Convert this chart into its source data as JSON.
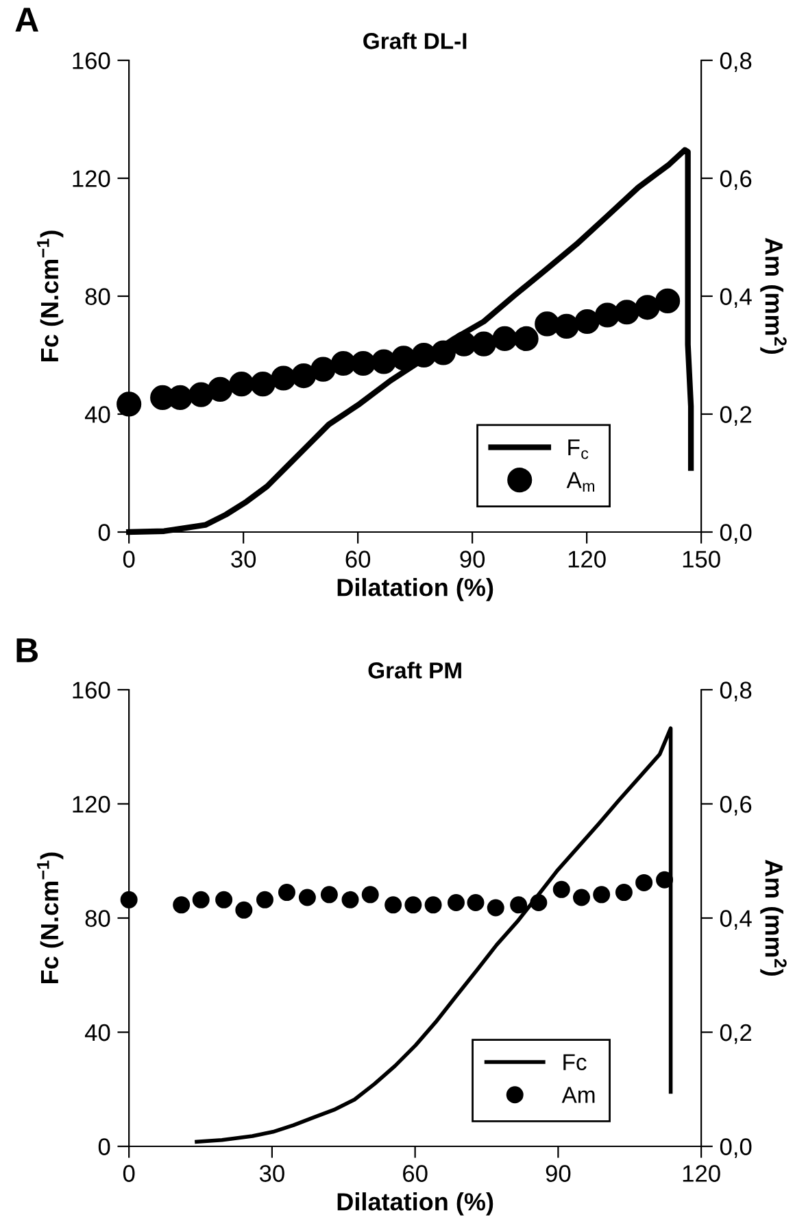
{
  "chart_data": [
    {
      "type": "line",
      "title": "Graft DL-I",
      "xlabel": "Dilatation (%)",
      "ylabel": "Fc (N.cm$^{−1}$)",
      "y2label": "Am (mm$^{2}$)",
      "annotations": [
        "A"
      ],
      "xlim": [
        0,
        150
      ],
      "xticks": [
        0,
        30,
        60,
        90,
        120,
        150
      ],
      "ylim": [
        0,
        160
      ],
      "yticks": [
        0,
        40,
        80,
        120,
        160
      ],
      "y2lim": [
        0,
        0.8
      ],
      "y2ticks": [
        {
          "value": 0,
          "label": "0,0"
        },
        {
          "value": 0.2,
          "label": "0,2"
        },
        {
          "value": 0.4,
          "label": "0,4"
        },
        {
          "value": 0.6,
          "label": "0,6"
        },
        {
          "value": 0.8,
          "label": "0,8"
        }
      ],
      "legend": "bottom right",
      "grid": false,
      "series": [
        {
          "name": "F$_{c}$",
          "color": "#000000",
          "line_style": "solid",
          "marker": "none",
          "x": [
            0,
            9.2,
            20,
            25.4,
            30.8,
            36.2,
            41.6,
            47,
            52.4,
            60.5,
            68.6,
            76.8,
            84.9,
            93,
            101,
            109.2,
            117.3,
            125.4,
            133.5,
            141.6,
            145.7,
            146.5,
            146.5,
            146.5,
            147.3,
            147.3
          ],
          "values": [
            0,
            0.3,
            2.4,
            5.9,
            10.3,
            15.5,
            22.5,
            29.5,
            36.5,
            43.5,
            51.4,
            58.3,
            65.3,
            71.4,
            80.2,
            88.9,
            97.6,
            107.2,
            116.9,
            124.7,
            129.6,
            129,
            98.5,
            63.6,
            42.6,
            21.7
          ]
        },
        {
          "name": "A$_{m}$",
          "type": "scatter",
          "axis": "y2",
          "color": "#000000",
          "marker": "circle",
          "x": [
            0,
            8.8,
            13.4,
            18.9,
            23.9,
            29.5,
            35.1,
            40.5,
            45.8,
            50.9,
            56.2,
            61.4,
            66.8,
            72.0,
            77.3,
            82.4,
            87.8,
            93.0,
            98.5,
            104.1,
            109.6,
            114.7,
            120.1,
            125.4,
            130.5,
            135.9,
            141.2
          ],
          "values": [
            0.217,
            0.228,
            0.228,
            0.233,
            0.242,
            0.251,
            0.251,
            0.261,
            0.265,
            0.276,
            0.286,
            0.286,
            0.289,
            0.295,
            0.3,
            0.304,
            0.319,
            0.319,
            0.328,
            0.328,
            0.353,
            0.349,
            0.357,
            0.368,
            0.373,
            0.381,
            0.392
          ]
        }
      ]
    },
    {
      "type": "line",
      "title": "Graft PM",
      "xlabel": "Dilatation (%)",
      "ylabel": "Fc (N.cm$^{−1}$)",
      "y2label": "Am (mm$^{2}$)",
      "annotations": [
        "B"
      ],
      "xlim": [
        0,
        120
      ],
      "xticks": [
        0,
        30,
        60,
        90,
        120
      ],
      "ylim": [
        0,
        160
      ],
      "yticks": [
        0,
        40,
        80,
        120,
        160
      ],
      "y2lim": [
        0,
        0.8
      ],
      "y2ticks": [
        {
          "value": 0,
          "label": "0,0"
        },
        {
          "value": 0.2,
          "label": "0,2"
        },
        {
          "value": 0.4,
          "label": "0,4"
        },
        {
          "value": 0.6,
          "label": "0,6"
        },
        {
          "value": 0.8,
          "label": "0,8"
        }
      ],
      "legend": "bottom right",
      "grid": false,
      "series": [
        {
          "name": "Fc",
          "color": "#000000",
          "line_style": "solid",
          "marker": "none",
          "x": [
            14.2,
            19.5,
            25.9,
            30.2,
            34.5,
            38.7,
            43,
            47.3,
            51.5,
            55.8,
            60.1,
            64.3,
            68.6,
            72.9,
            77.1,
            81.4,
            85.7,
            89.9,
            94.2,
            98.5,
            102.7,
            107,
            111.3,
            113.6,
            113.6,
            113.6
          ],
          "values": [
            1.6,
            2.2,
            3.6,
            5.1,
            7.4,
            10.1,
            12.8,
            16.4,
            21.9,
            28.2,
            35.4,
            43.5,
            52.6,
            61.6,
            70.6,
            78.7,
            87.8,
            96.8,
            104.9,
            113,
            121.2,
            129.3,
            137.4,
            146.5,
            82.3,
            19.1
          ]
        },
        {
          "name": "Am",
          "type": "scatter",
          "axis": "y2",
          "color": "#000000",
          "marker": "circle",
          "x": [
            0,
            11.0,
            15.1,
            19.9,
            24.1,
            28.5,
            33.1,
            37.4,
            42.0,
            46.4,
            50.6,
            55.4,
            59.6,
            63.8,
            68.6,
            72.7,
            76.9,
            81.7,
            85.9,
            90.7,
            94.9,
            99.1,
            103.8,
            108.0,
            112.3
          ],
          "values": [
            0.432,
            0.423,
            0.432,
            0.432,
            0.414,
            0.432,
            0.445,
            0.436,
            0.441,
            0.432,
            0.441,
            0.423,
            0.423,
            0.423,
            0.427,
            0.427,
            0.418,
            0.423,
            0.427,
            0.45,
            0.436,
            0.441,
            0.445,
            0.462,
            0.467
          ]
        }
      ]
    }
  ]
}
